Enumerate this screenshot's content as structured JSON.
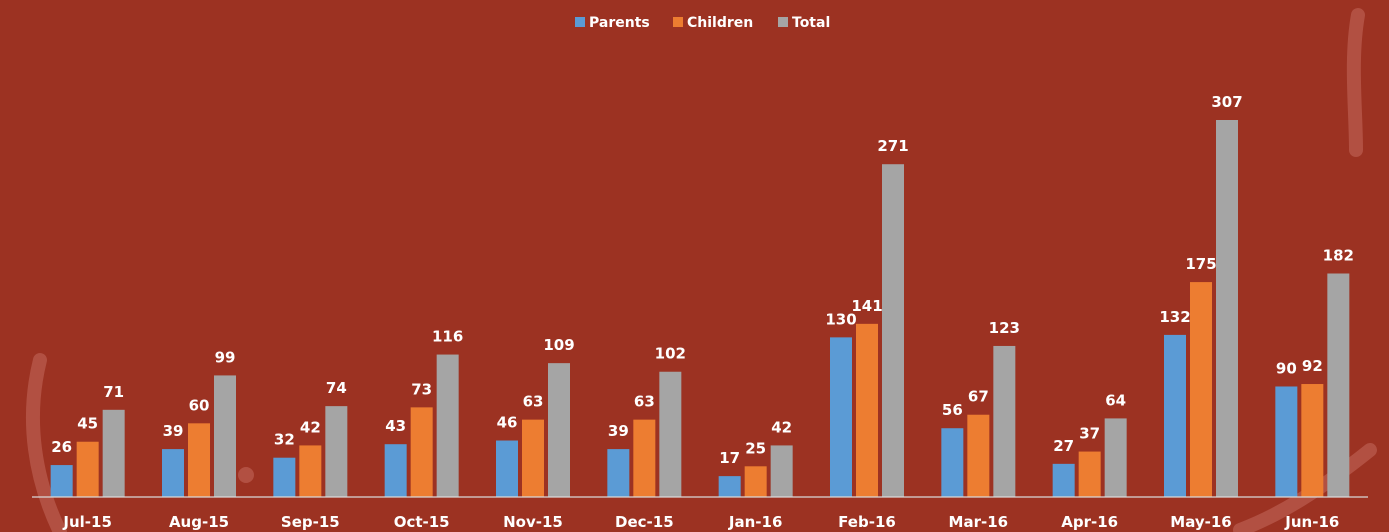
{
  "chart_data": {
    "type": "bar",
    "categories": [
      "Jul-15",
      "Aug-15",
      "Sep-15",
      "Oct-15",
      "Nov-15",
      "Dec-15",
      "Jan-16",
      "Feb-16",
      "Mar-16",
      "Apr-16",
      "May-16",
      "Jun-16"
    ],
    "series": [
      {
        "name": "Parents",
        "color": "#5b9bd5",
        "values": [
          26,
          39,
          32,
          43,
          46,
          39,
          17,
          130,
          56,
          27,
          132,
          90
        ]
      },
      {
        "name": "Children",
        "color": "#ed7d31",
        "values": [
          45,
          60,
          42,
          73,
          63,
          63,
          25,
          141,
          67,
          37,
          175,
          92
        ]
      },
      {
        "name": "Total",
        "color": "#a5a5a5",
        "values": [
          71,
          99,
          74,
          116,
          109,
          102,
          42,
          271,
          123,
          64,
          307,
          182
        ]
      }
    ],
    "title": "",
    "xlabel": "",
    "ylabel": "",
    "ylim": [
      0,
      307
    ],
    "legend_position": "top-center",
    "grid": false,
    "data_labels": true
  },
  "colors": {
    "background": "#9c3222",
    "axis": "#d9d9d9",
    "text": "#ffffff"
  }
}
